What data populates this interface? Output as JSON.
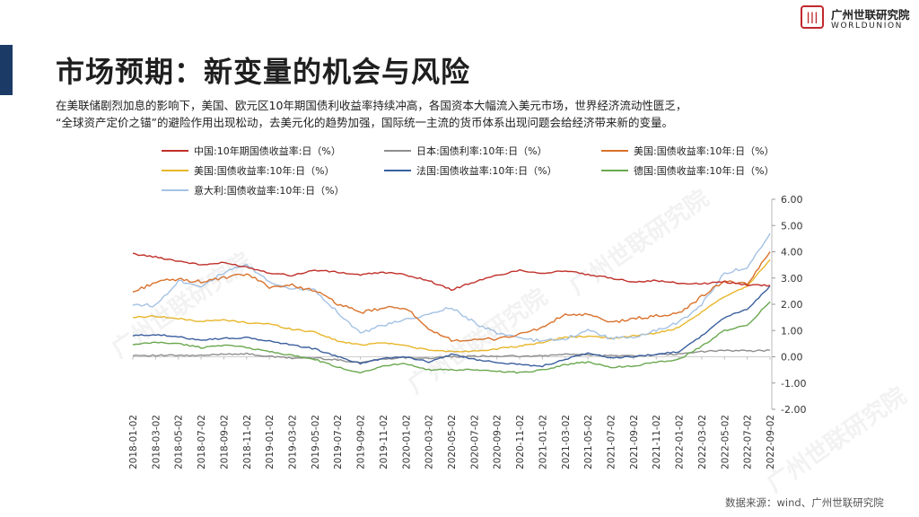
{
  "header": {
    "title": "市场预期：新变量的机会与风险",
    "logo_cn": "广州世联研究院",
    "logo_en": "WORLDUNION"
  },
  "paragraph": {
    "line1": "在美联储剧烈加息的影响下，美国、欧元区10年期国债利收益率持续冲高，各国资本大幅流入美元市场，世界经济流动性匮乏，",
    "line2": "“全球资产定价之锚”的避险作用出现松动，去美元化的趋势加强，国际统一主流的货币体系出现问题会给经济带来新的变量。"
  },
  "watermark": "广州世联研究院",
  "source": "数据来源：wind、广州世联研究院",
  "chart_data": {
    "type": "line",
    "ylim": [
      -2,
      6
    ],
    "yticks": [
      "6.00",
      "5.00",
      "4.00",
      "3.00",
      "2.00",
      "1.00",
      "0.00",
      "-1.00",
      "-2.00"
    ],
    "categories": [
      "2018-01-02",
      "2018-03-02",
      "2018-05-02",
      "2018-07-02",
      "2018-09-02",
      "2018-11-02",
      "2019-01-02",
      "2019-03-02",
      "2019-05-02",
      "2019-07-02",
      "2019-09-02",
      "2019-11-02",
      "2020-01-02",
      "2020-03-02",
      "2020-05-02",
      "2020-07-02",
      "2020-09-02",
      "2020-11-02",
      "2021-01-02",
      "2021-03-02",
      "2021-05-02",
      "2021-07-02",
      "2021-09-02",
      "2021-11-02",
      "2022-01-02",
      "2022-03-02",
      "2022-05-02",
      "2022-07-02",
      "2022-09-02"
    ],
    "series": [
      {
        "name": "中国:10年期国债收益率:日（%）",
        "color": "#c0302a",
        "values": [
          3.92,
          3.8,
          3.65,
          3.5,
          3.58,
          3.42,
          3.2,
          3.1,
          3.3,
          3.22,
          3.12,
          3.22,
          3.12,
          2.9,
          2.55,
          2.85,
          3.1,
          3.3,
          3.18,
          3.28,
          3.12,
          3.0,
          2.86,
          2.9,
          2.8,
          2.78,
          2.85,
          2.74,
          2.72
        ]
      },
      {
        "name": "日本:国债利率:10年:日（%）",
        "color": "#8e8e8e",
        "values": [
          0.06,
          0.05,
          0.05,
          0.04,
          0.11,
          0.11,
          0.01,
          -0.05,
          -0.04,
          -0.12,
          -0.22,
          -0.08,
          -0.02,
          -0.05,
          0.0,
          0.02,
          0.03,
          0.02,
          0.03,
          0.1,
          0.08,
          0.04,
          0.04,
          0.07,
          0.1,
          0.2,
          0.24,
          0.22,
          0.25
        ]
      },
      {
        "name": "美国:国债收益率:10年:日（%）",
        "color": "#d9712b",
        "values": [
          2.46,
          2.85,
          2.95,
          2.86,
          3.0,
          3.15,
          2.67,
          2.72,
          2.52,
          2.02,
          1.68,
          1.85,
          1.88,
          1.0,
          0.65,
          0.62,
          0.7,
          0.85,
          1.12,
          1.6,
          1.6,
          1.3,
          1.45,
          1.55,
          1.65,
          2.3,
          2.9,
          2.75,
          4.0
        ]
      },
      {
        "name": "美国:国债收益率:10年:日（%）",
        "color": "#e8b62a",
        "values": [
          1.5,
          1.55,
          1.45,
          1.35,
          1.4,
          1.3,
          1.25,
          1.05,
          0.95,
          0.6,
          0.45,
          0.55,
          0.42,
          0.25,
          0.2,
          0.22,
          0.3,
          0.4,
          0.55,
          0.75,
          0.78,
          0.7,
          0.8,
          0.9,
          1.1,
          1.7,
          2.3,
          2.7,
          3.7
        ]
      },
      {
        "name": "法国:国债收益率:10年:日（%）",
        "color": "#3a5f9e",
        "values": [
          0.8,
          0.85,
          0.75,
          0.65,
          0.7,
          0.72,
          0.6,
          0.45,
          0.3,
          0.0,
          -0.25,
          -0.05,
          0.0,
          -0.2,
          0.1,
          -0.1,
          -0.2,
          -0.3,
          -0.35,
          -0.1,
          0.15,
          -0.05,
          0.0,
          0.1,
          0.2,
          0.8,
          1.5,
          1.8,
          2.7
        ]
      },
      {
        "name": "德国:国债收益率:10年:日（%）",
        "color": "#6aa84f",
        "values": [
          0.45,
          0.55,
          0.5,
          0.35,
          0.45,
          0.35,
          0.2,
          0.05,
          -0.1,
          -0.4,
          -0.6,
          -0.35,
          -0.25,
          -0.5,
          -0.5,
          -0.5,
          -0.55,
          -0.6,
          -0.5,
          -0.3,
          -0.2,
          -0.4,
          -0.35,
          -0.2,
          -0.1,
          0.4,
          1.0,
          1.2,
          2.1
        ]
      },
      {
        "name": "意大利:国债收益率:10年:日（%）",
        "color": "#a4c2e4",
        "values": [
          2.0,
          1.95,
          2.9,
          2.7,
          3.2,
          3.5,
          2.85,
          2.6,
          2.55,
          1.7,
          0.9,
          1.2,
          1.4,
          1.6,
          1.9,
          1.3,
          0.9,
          0.7,
          0.6,
          0.7,
          1.0,
          0.7,
          0.75,
          1.0,
          1.3,
          2.0,
          3.2,
          3.4,
          4.7
        ]
      }
    ]
  }
}
